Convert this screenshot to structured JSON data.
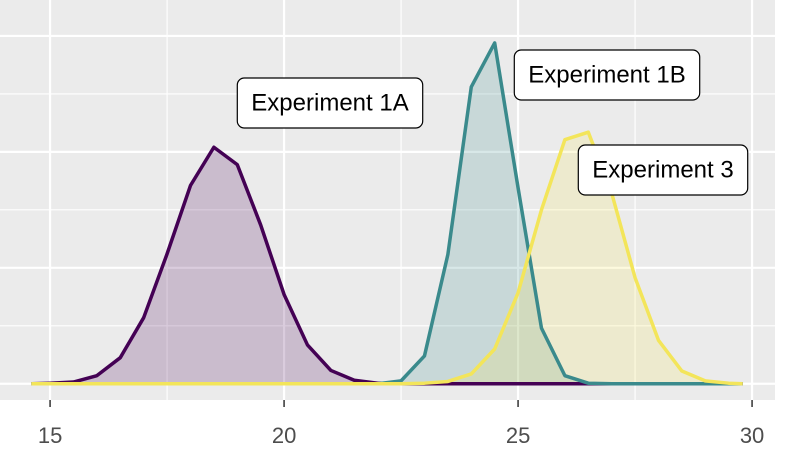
{
  "chart_data": {
    "type": "density",
    "x": [
      14.6,
      15,
      15.5,
      16,
      16.5,
      17,
      17.5,
      18,
      18.5,
      19,
      19.5,
      20,
      20.5,
      21,
      21.5,
      22,
      22.5,
      23,
      23.5,
      24,
      24.5,
      25,
      25.5,
      26,
      26.5,
      27,
      27.5,
      28,
      28.5,
      29,
      29.5,
      29.8
    ],
    "series": [
      {
        "name": "Experiment 1A",
        "color": "#440154",
        "values": [
          0,
          0.001,
          0.003,
          0.014,
          0.045,
          0.114,
          0.224,
          0.342,
          0.408,
          0.378,
          0.274,
          0.154,
          0.067,
          0.023,
          0.006,
          0.001,
          0,
          0,
          0,
          0,
          0,
          0,
          0,
          0,
          0,
          0,
          0,
          0,
          0,
          0,
          0,
          0
        ]
      },
      {
        "name": "Experiment 1B",
        "color": "#3a8a8c",
        "values": [
          0,
          0,
          0,
          0,
          0,
          0,
          0,
          0,
          0,
          0,
          0,
          0,
          0,
          0,
          0,
          0,
          0.005,
          0.048,
          0.223,
          0.512,
          0.588,
          0.338,
          0.096,
          0.014,
          0.001,
          0,
          0,
          0,
          0,
          0,
          0,
          0
        ]
      },
      {
        "name": "Experiment 3",
        "color": "#f3e55a",
        "values": [
          0,
          0,
          0,
          0,
          0,
          0,
          0,
          0,
          0,
          0,
          0,
          0,
          0,
          0,
          0,
          0,
          0,
          0.001,
          0.004,
          0.017,
          0.06,
          0.157,
          0.3,
          0.421,
          0.434,
          0.329,
          0.183,
          0.075,
          0.022,
          0.005,
          0.001,
          0
        ]
      }
    ],
    "xlim": [
      13.93,
      30.49
    ],
    "xticks": [
      15,
      20,
      25,
      30
    ],
    "ylim": [
      -0.028,
      0.662
    ],
    "yticks": [
      0,
      0.2,
      0.4,
      0.6
    ],
    "y_tick_labels": false,
    "grid": true
  }
}
